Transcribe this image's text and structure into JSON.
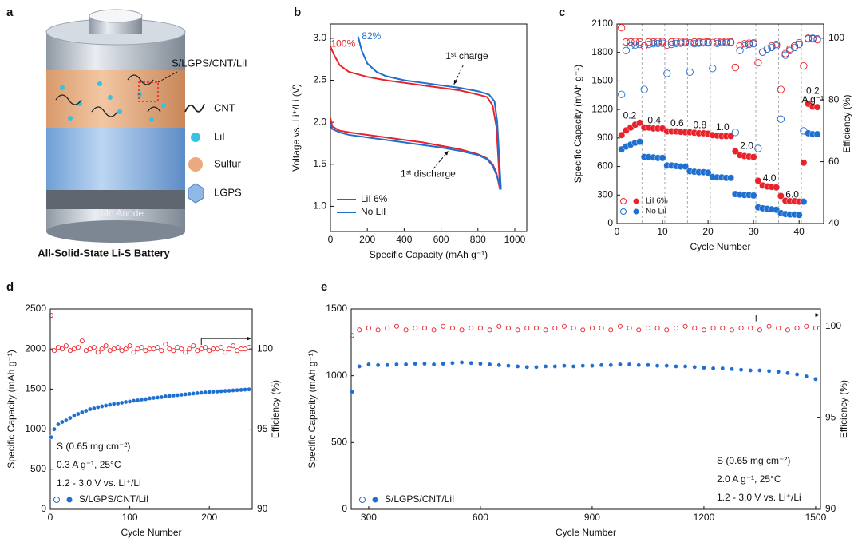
{
  "diagram": {
    "panel": "a",
    "label": "S/LGPS/CNT/LiI",
    "legend": [
      "CNT",
      "LiI",
      "Sulfur",
      "LGPS"
    ],
    "anode": "Li/In Anode",
    "caption": "All-Solid-State Li-S Battery"
  },
  "chart_data": [
    {
      "type": "line",
      "panel": "b",
      "xlabel": "Specific Capacity (mAh g⁻¹)",
      "ylabel": "Voltage vs. Li⁺/Li (V)",
      "xlim": [
        0,
        1065
      ],
      "xticks": [
        0,
        200,
        400,
        600,
        800,
        1000
      ],
      "ylim": [
        0.7,
        3.17
      ],
      "yticks": [
        {
          "value": 1.0,
          "label": "1.0"
        },
        1.5,
        {
          "value": 2.0,
          "label": "2.0"
        },
        2.5,
        {
          "value": 3.0,
          "label": "3.0"
        }
      ],
      "legend": "lower left",
      "series": [
        {
          "name": "LiI 6%",
          "color": "#e8232b",
          "x": [
            0,
            10,
            50,
            100,
            200,
            300,
            400,
            500,
            600,
            700,
            800,
            850,
            880,
            900,
            910,
            920,
            910,
            900,
            880,
            850,
            800,
            700,
            600,
            500,
            400,
            300,
            200,
            100,
            50,
            20,
            0
          ],
          "values": [
            2.05,
            1.95,
            1.9,
            1.88,
            1.85,
            1.82,
            1.79,
            1.76,
            1.72,
            1.68,
            1.62,
            1.57,
            1.5,
            1.4,
            1.3,
            1.2,
            1.6,
            1.95,
            2.2,
            2.3,
            2.33,
            2.38,
            2.41,
            2.44,
            2.47,
            2.5,
            2.54,
            2.6,
            2.68,
            2.8,
            2.9
          ]
        },
        {
          "name": "No LiI",
          "color": "#1f6fd1",
          "x": [
            0,
            10,
            50,
            100,
            200,
            300,
            400,
            500,
            600,
            700,
            800,
            850,
            880,
            900,
            915,
            925,
            915,
            905,
            890,
            860,
            800,
            700,
            600,
            500,
            400,
            300,
            250,
            200,
            170,
            150
          ],
          "values": [
            1.98,
            1.92,
            1.88,
            1.85,
            1.82,
            1.79,
            1.76,
            1.73,
            1.7,
            1.66,
            1.61,
            1.56,
            1.48,
            1.38,
            1.28,
            1.2,
            1.6,
            2.0,
            2.25,
            2.33,
            2.37,
            2.41,
            2.44,
            2.47,
            2.5,
            2.55,
            2.6,
            2.7,
            2.85,
            3.02
          ]
        }
      ],
      "annotations": [
        {
          "text": "100%",
          "color": "#e8232b"
        },
        {
          "text": "82%",
          "color": "#1f6fd1"
        },
        {
          "text": "1ˢᵗ charge"
        },
        {
          "text": "1ˢᵗ discharge"
        }
      ]
    },
    {
      "type": "scatter",
      "panel": "c",
      "xlabel": "Cycle Number",
      "ylabel": "Specific Capacity (mAh g⁻¹)",
      "y2label": "Efficiency (%)",
      "xlim": [
        0,
        45.4
      ],
      "xticks": [
        0,
        10,
        20,
        30,
        40
      ],
      "ylim": [
        0,
        2100
      ],
      "yticks": [
        0,
        300,
        600,
        900,
        1200,
        1500,
        1800,
        2100
      ],
      "y2lim": [
        40,
        104.6
      ],
      "y2ticks": [
        40,
        60,
        80,
        100
      ],
      "dividers": [
        5.5,
        10.5,
        15.5,
        20.5,
        25.5,
        30.5,
        35.5,
        40.5
      ],
      "legend": "lower left",
      "x": [
        1,
        2,
        3,
        4,
        5,
        6,
        7,
        8,
        9,
        10,
        11,
        12,
        13,
        14,
        15,
        16,
        17,
        18,
        19,
        20,
        21,
        22,
        23,
        24,
        25,
        26,
        27,
        28,
        29,
        30,
        31,
        32,
        33,
        34,
        35,
        36,
        37,
        38,
        39,
        40,
        41,
        42,
        43,
        44
      ],
      "series": [
        {
          "name": "LiI 6%",
          "color": "#e8232b",
          "marker": "filled",
          "values": [
            930,
            980,
            1010,
            1040,
            1060,
            1010,
            1010,
            1000,
            1000,
            1000,
            970,
            970,
            970,
            965,
            960,
            960,
            955,
            950,
            950,
            945,
            930,
            925,
            920,
            920,
            920,
            760,
            720,
            710,
            705,
            700,
            450,
            400,
            390,
            385,
            380,
            290,
            240,
            235,
            235,
            230,
            640,
            1260,
            1230,
            1225
          ]
        },
        {
          "name": "No LiI",
          "color": "#1f6fd1",
          "marker": "filled",
          "values": [
            780,
            810,
            830,
            850,
            860,
            700,
            700,
            695,
            690,
            690,
            610,
            610,
            605,
            600,
            600,
            550,
            545,
            540,
            540,
            535,
            490,
            485,
            485,
            480,
            480,
            310,
            305,
            300,
            300,
            295,
            170,
            160,
            155,
            150,
            145,
            110,
            100,
            95,
            95,
            90,
            230,
            950,
            940,
            940
          ]
        },
        {
          "color": "#e8232b",
          "marker": "open",
          "axis": "y2",
          "values": [
            103.4,
            98.8,
            98.8,
            98.9,
            98.8,
            97.5,
            98.8,
            98.8,
            98.9,
            98.9,
            97.8,
            98.8,
            98.9,
            98.9,
            98.9,
            98.5,
            98.8,
            98.8,
            98.9,
            98.8,
            98.6,
            98.9,
            98.9,
            98.9,
            98.8,
            90.5,
            97.5,
            98.2,
            98.4,
            98.5,
            92.0,
            95.5,
            96.5,
            97.5,
            98.0,
            83.4,
            95.0,
            96.5,
            97.5,
            98.5,
            91.0,
            100.0,
            99.8,
            99.5
          ]
        },
        {
          "color": "#1f6fd1",
          "marker": "open",
          "axis": "y2",
          "values": [
            81.8,
            96.0,
            97.5,
            97.8,
            98.0,
            83.4,
            98.0,
            98.2,
            98.3,
            98.4,
            88.6,
            98.0,
            98.3,
            98.4,
            98.5,
            89.0,
            98.2,
            98.4,
            98.5,
            98.5,
            90.2,
            98.3,
            98.5,
            98.5,
            98.6,
            69.5,
            96.0,
            97.5,
            98.0,
            98.2,
            64.3,
            95.5,
            96.5,
            97.0,
            97.5,
            73.8,
            94.5,
            96.0,
            97.0,
            98.0,
            70.0,
            99.8,
            100.0,
            99.8
          ]
        }
      ],
      "annotations": [
        {
          "text": "0.2"
        },
        {
          "text": "0.4"
        },
        {
          "text": "0.6"
        },
        {
          "text": "0.8"
        },
        {
          "text": "1.0"
        },
        {
          "text": "2.0"
        },
        {
          "text": "4.0"
        },
        {
          "text": "6.0"
        },
        {
          "text": "0.2"
        },
        {
          "text": "A g⁻¹"
        }
      ]
    },
    {
      "type": "scatter",
      "panel": "d",
      "xlabel": "Cycle Number",
      "ylabel": "Specific Capacity (mAh g⁻¹)",
      "y2label": "Efficiency (%)",
      "xlim": [
        0,
        254
      ],
      "xticks": [
        0,
        100,
        200
      ],
      "ylim": [
        0,
        2500
      ],
      "yticks": [
        0,
        500,
        1000,
        1500,
        2000,
        2500
      ],
      "y2lim": [
        90,
        102.5
      ],
      "y2ticks": [
        90,
        95,
        100
      ],
      "legend": "lower left",
      "x": [
        1,
        5,
        10,
        15,
        20,
        25,
        30,
        35,
        40,
        45,
        50,
        55,
        60,
        65,
        70,
        75,
        80,
        85,
        90,
        95,
        100,
        105,
        110,
        115,
        120,
        125,
        130,
        135,
        140,
        145,
        150,
        155,
        160,
        165,
        170,
        175,
        180,
        185,
        190,
        195,
        200,
        205,
        210,
        215,
        220,
        225,
        230,
        235,
        240,
        245,
        250
      ],
      "series": [
        {
          "name": "S/LGPS/CNT/LiI",
          "color": "#1f6fd1",
          "marker": "filled",
          "values": [
            900,
            1000,
            1060,
            1090,
            1110,
            1140,
            1170,
            1190,
            1210,
            1230,
            1250,
            1260,
            1275,
            1285,
            1295,
            1305,
            1315,
            1320,
            1330,
            1340,
            1345,
            1355,
            1360,
            1370,
            1375,
            1385,
            1390,
            1395,
            1400,
            1410,
            1415,
            1420,
            1425,
            1430,
            1435,
            1440,
            1445,
            1450,
            1455,
            1460,
            1465,
            1468,
            1470,
            1474,
            1478,
            1480,
            1484,
            1487,
            1490,
            1494,
            1497
          ]
        },
        {
          "color": "#e8232b",
          "marker": "open",
          "axis": "y2",
          "values": [
            102.1,
            99.9,
            100.1,
            100.0,
            100.2,
            99.9,
            100.0,
            100.1,
            100.5,
            99.9,
            100.0,
            100.1,
            99.8,
            100.0,
            100.2,
            99.9,
            100.0,
            100.1,
            99.9,
            100.0,
            100.2,
            99.8,
            100.0,
            100.1,
            99.9,
            100.0,
            100.0,
            100.1,
            99.9,
            100.3,
            100.0,
            99.9,
            100.1,
            100.0,
            99.8,
            100.0,
            100.2,
            99.9,
            100.0,
            100.1,
            99.9,
            100.0,
            100.0,
            100.1,
            99.8,
            100.0,
            100.2,
            99.9,
            100.0,
            100.0,
            100.1
          ]
        }
      ],
      "annotations": [
        {
          "text": "S (0.65 mg cm⁻²)"
        },
        {
          "text": "0.3 A g⁻¹, 25°C"
        },
        {
          "text": "1.2 - 3.0 V vs. Li⁺/Li"
        }
      ]
    },
    {
      "type": "scatter",
      "panel": "e",
      "xlabel": "Cycle Number",
      "ylabel": "Specific Capacity (mAh g⁻¹)",
      "y2label": "Efficiency (%)",
      "xlim": [
        253,
        1513
      ],
      "xticks": [
        300,
        600,
        900,
        1200,
        1500
      ],
      "ylim": [
        0,
        1500
      ],
      "yticks": [
        0,
        500,
        1000,
        1500
      ],
      "y2lim": [
        90,
        100.95
      ],
      "y2ticks": [
        90,
        95,
        100
      ],
      "legend": "lower left",
      "x": [
        255,
        275,
        300,
        325,
        350,
        375,
        400,
        425,
        450,
        475,
        500,
        525,
        550,
        575,
        600,
        625,
        650,
        675,
        700,
        725,
        750,
        775,
        800,
        825,
        850,
        875,
        900,
        925,
        950,
        975,
        1000,
        1025,
        1050,
        1075,
        1100,
        1125,
        1150,
        1175,
        1200,
        1225,
        1250,
        1275,
        1300,
        1325,
        1350,
        1375,
        1400,
        1425,
        1450,
        1475,
        1500
      ],
      "series": [
        {
          "name": "S/LGPS/CNT/LiI",
          "color": "#1f6fd1",
          "marker": "filled",
          "values": [
            880,
            1070,
            1085,
            1080,
            1080,
            1085,
            1085,
            1090,
            1090,
            1085,
            1090,
            1095,
            1100,
            1095,
            1090,
            1085,
            1080,
            1075,
            1070,
            1065,
            1065,
            1070,
            1070,
            1075,
            1070,
            1075,
            1075,
            1080,
            1080,
            1085,
            1085,
            1080,
            1080,
            1075,
            1075,
            1070,
            1070,
            1065,
            1060,
            1055,
            1055,
            1050,
            1045,
            1040,
            1040,
            1035,
            1030,
            1020,
            1010,
            995,
            975
          ]
        },
        {
          "color": "#e8232b",
          "marker": "open",
          "axis": "y2",
          "values": [
            99.5,
            99.8,
            99.9,
            99.8,
            99.9,
            100.0,
            99.8,
            99.9,
            99.9,
            99.8,
            100.0,
            99.9,
            99.8,
            99.9,
            99.9,
            99.8,
            100.0,
            99.9,
            99.8,
            99.9,
            99.9,
            99.8,
            99.9,
            100.0,
            99.9,
            99.8,
            99.9,
            99.9,
            99.8,
            100.0,
            99.9,
            99.8,
            99.9,
            99.9,
            99.8,
            99.9,
            100.0,
            99.9,
            99.8,
            99.9,
            99.9,
            99.8,
            99.9,
            99.9,
            99.8,
            100.0,
            99.9,
            99.8,
            99.9,
            100.0,
            99.9
          ]
        }
      ],
      "annotations": [
        {
          "text": "S (0.65 mg cm⁻²)"
        },
        {
          "text": "2.0 A g⁻¹, 25°C"
        },
        {
          "text": "1.2 - 3.0 V vs. Li⁺/Li"
        }
      ]
    }
  ]
}
